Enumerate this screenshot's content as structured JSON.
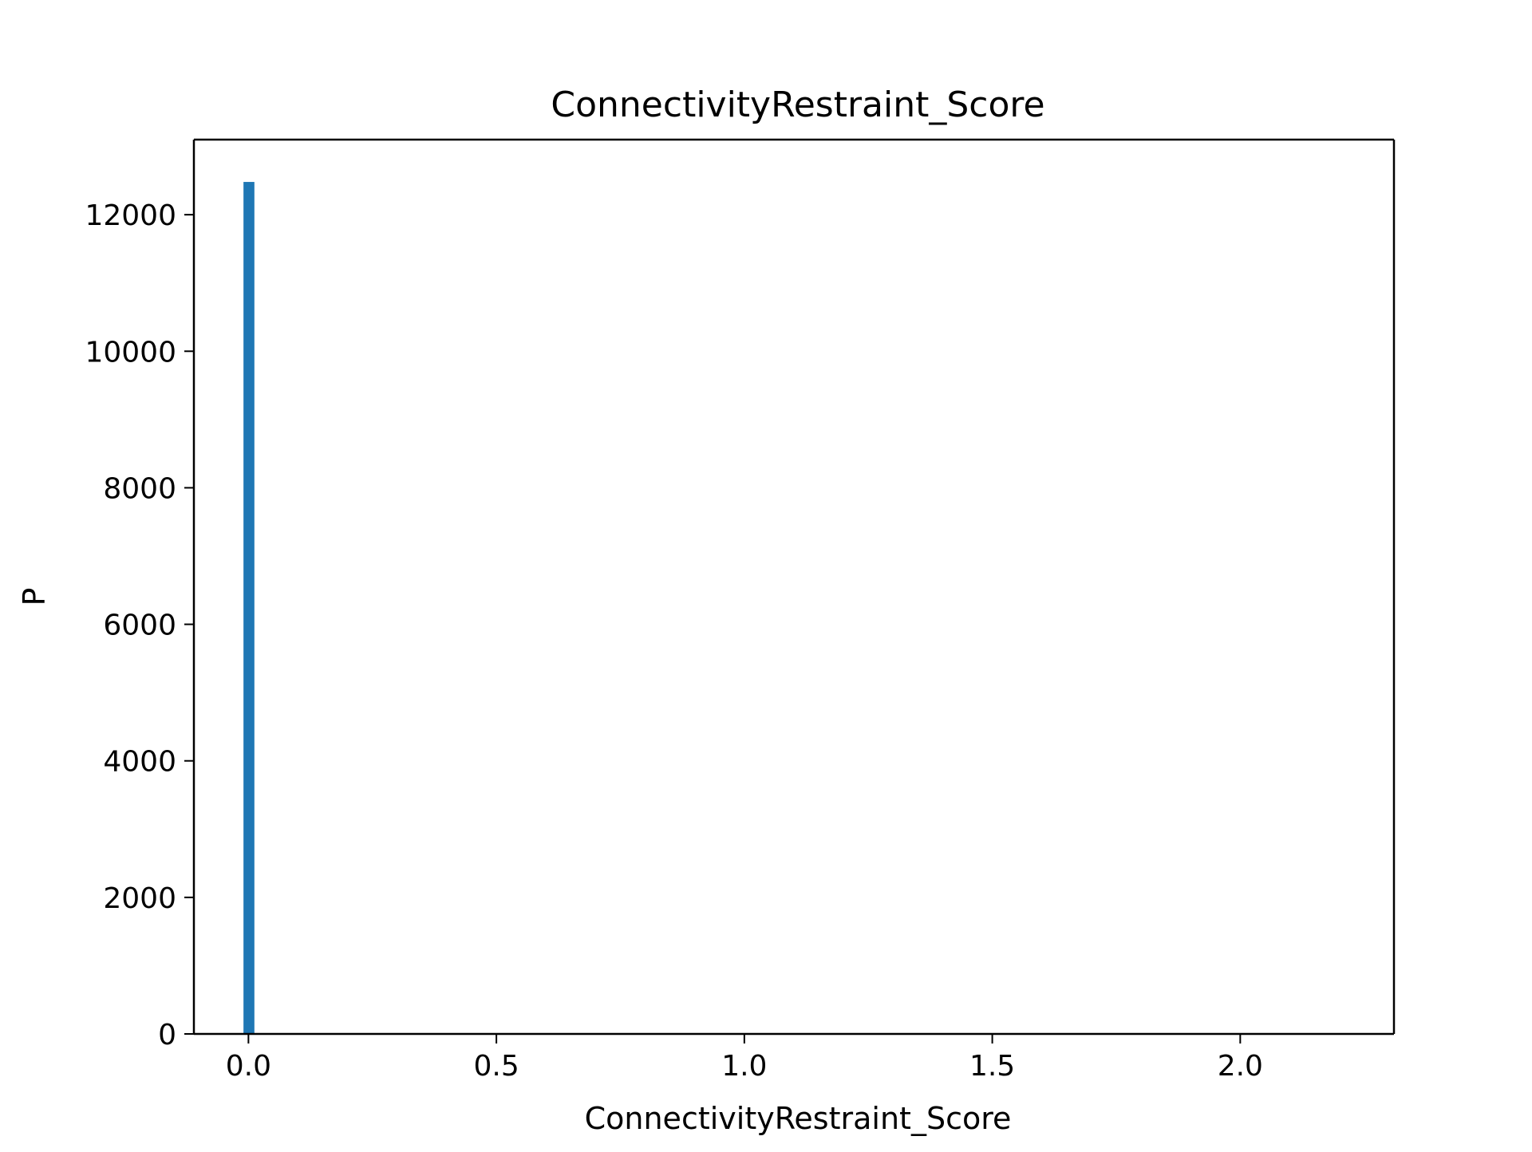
{
  "chart_data": {
    "type": "bar",
    "title": "ConnectivityRestraint_Score",
    "xlabel": "ConnectivityRestraint_Score",
    "ylabel": "P",
    "xlim": [
      -0.11,
      2.31
    ],
    "ylim": [
      0,
      13100
    ],
    "x_ticks": [
      0.0,
      0.5,
      1.0,
      1.5,
      2.0
    ],
    "x_tick_labels": [
      "0.0",
      "0.5",
      "1.0",
      "1.5",
      "2.0"
    ],
    "y_ticks": [
      0,
      2000,
      4000,
      6000,
      8000,
      10000,
      12000
    ],
    "y_tick_labels": [
      "0",
      "2000",
      "4000",
      "6000",
      "8000",
      "10000",
      "12000"
    ],
    "bins": [
      {
        "x_start": -0.01,
        "x_end": 0.012,
        "value": 12480
      }
    ],
    "grid": false,
    "legend": "none",
    "colors": {
      "bar": "#1f77b4",
      "axes": "#000000",
      "background": "#ffffff"
    }
  }
}
